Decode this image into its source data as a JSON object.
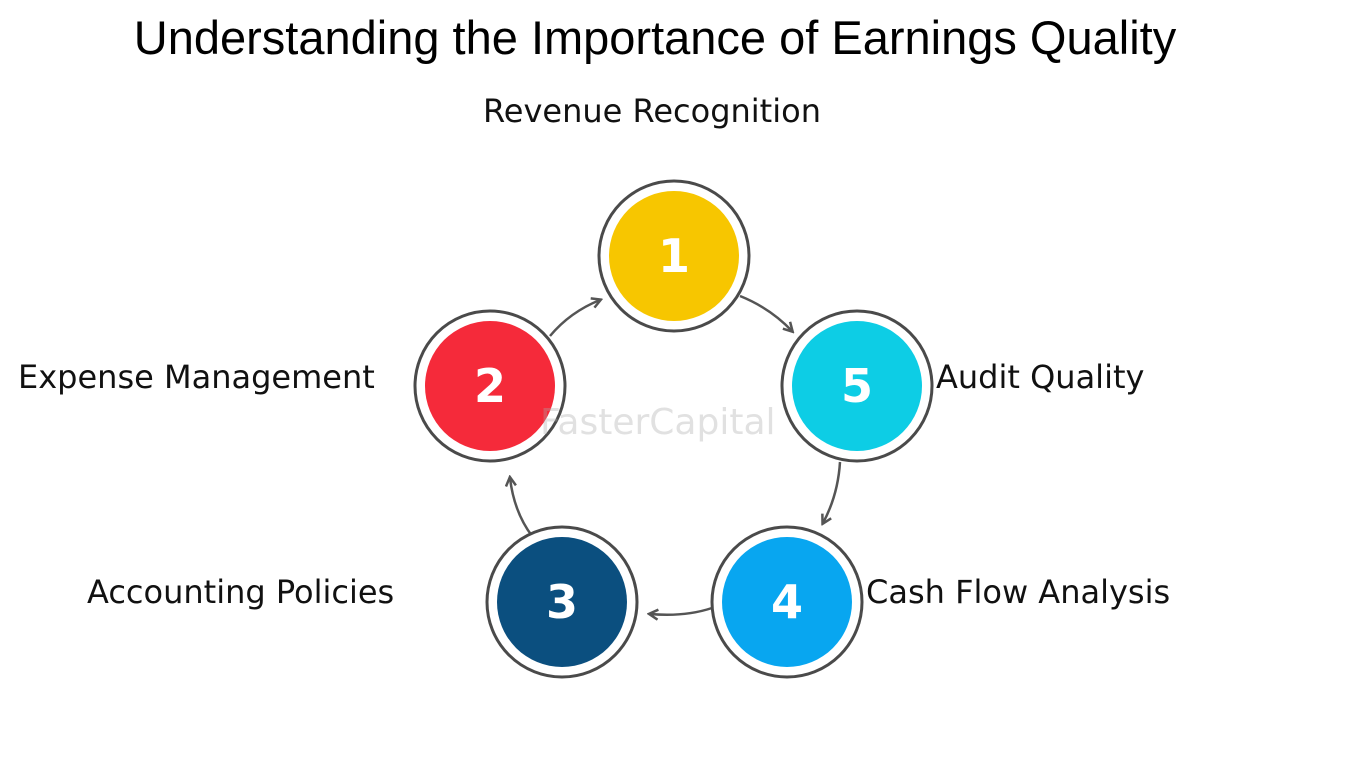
{
  "title": "Understanding the Importance of Earnings Quality",
  "steps": [
    {
      "number": "1",
      "label": "Revenue Recognition",
      "color": "#F7C600"
    },
    {
      "number": "2",
      "label": "Expense Management",
      "color": "#F52A3A"
    },
    {
      "number": "3",
      "label": "Accounting Policies",
      "color": "#0B4F7F"
    },
    {
      "number": "4",
      "label": "Cash Flow Analysis",
      "color": "#08A6F0"
    },
    {
      "number": "5",
      "label": "Audit Quality",
      "color": "#0DCDE5"
    }
  ],
  "watermark": "FasterCapital"
}
